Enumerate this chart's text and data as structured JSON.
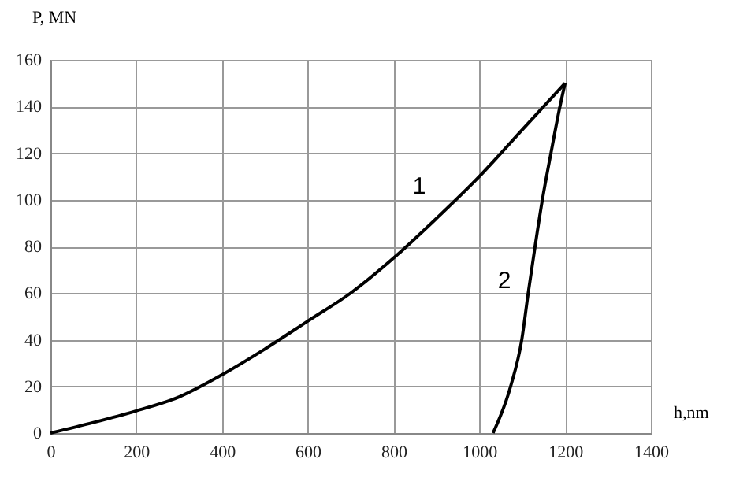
{
  "chart_data": {
    "type": "line",
    "xlabel": "h,nm",
    "ylabel": "P, MN",
    "xlim": [
      0,
      1400
    ],
    "ylim": [
      0,
      160
    ],
    "xticks": [
      0,
      200,
      400,
      600,
      800,
      1000,
      1200,
      1400
    ],
    "yticks": [
      0,
      20,
      40,
      60,
      80,
      100,
      120,
      140,
      160
    ],
    "grid": true,
    "legend": false,
    "marker": "none",
    "line_style": "solid",
    "series": [
      {
        "color": "#000000",
        "x": [
          0,
          100,
          200,
          300,
          400,
          500,
          600,
          700,
          800,
          900,
          1000,
          1100,
          1200
        ],
        "values": [
          0,
          4.5,
          9.5,
          15.5,
          25,
          36,
          48,
          60,
          75,
          92,
          110,
          130,
          150
        ]
      },
      {
        "color": "#000000",
        "x": [
          1032,
          1073,
          1099,
          1114,
          1130,
          1147,
          1167,
          1188,
          1200
        ],
        "values": [
          0,
          20,
          40,
          60,
          80,
          100,
          120,
          140,
          150
        ]
      }
    ],
    "annotations": [
      "1",
      "2"
    ]
  }
}
